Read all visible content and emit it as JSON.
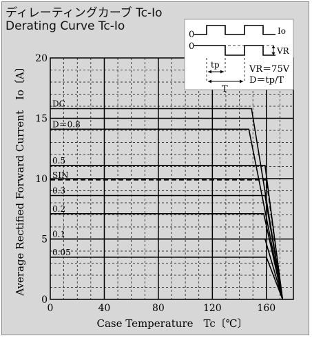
{
  "chart_data": {
    "type": "line",
    "title": "ディレーティングカーブ Tc-Io",
    "subtitle": "Derating Curve Tc-Io",
    "xlabel": "Case Temperature　Tc〔℃〕",
    "ylabel": "Average Rectified Forward Current　Io〔A〕",
    "xlim": [
      0,
      180
    ],
    "ylim": [
      0,
      20
    ],
    "x_ticks": [
      "0",
      "40",
      "80",
      "120",
      "160"
    ],
    "y_ticks": [
      "0",
      "5",
      "10",
      "15",
      "20"
    ],
    "grid": true,
    "series": [
      {
        "name": "DC",
        "x": [
          0,
          149,
          172
        ],
        "y": [
          15.8,
          15.8,
          0
        ]
      },
      {
        "name": "D＝0.8",
        "x": [
          0,
          147,
          172
        ],
        "y": [
          14.1,
          14.1,
          0
        ]
      },
      {
        "name": "0.5",
        "x": [
          0,
          159,
          172
        ],
        "y": [
          11.1,
          11.1,
          0
        ]
      },
      {
        "name": "SIN",
        "x": [
          0,
          160,
          172
        ],
        "y": [
          9.9,
          9.9,
          0
        ]
      },
      {
        "name": "0.3",
        "x": [
          0,
          159,
          172
        ],
        "y": [
          8.6,
          8.6,
          0
        ]
      },
      {
        "name": "0.2",
        "x": [
          0,
          158,
          172
        ],
        "y": [
          7.1,
          7.1,
          0
        ]
      },
      {
        "name": "0.1",
        "x": [
          0,
          159,
          172
        ],
        "y": [
          5.0,
          5.0,
          0
        ]
      },
      {
        "name": "0.05",
        "x": [
          0,
          160,
          172
        ],
        "y": [
          3.5,
          3.5,
          0
        ]
      }
    ],
    "inset": {
      "zero_label_top": "0",
      "zero_label_bottom": "0",
      "io_label": "Io",
      "vr_label": "VR",
      "tp_label": "tp",
      "t_label": "T",
      "vr_value": "VR＝75V",
      "duty_formula": "D＝tp/T"
    }
  }
}
